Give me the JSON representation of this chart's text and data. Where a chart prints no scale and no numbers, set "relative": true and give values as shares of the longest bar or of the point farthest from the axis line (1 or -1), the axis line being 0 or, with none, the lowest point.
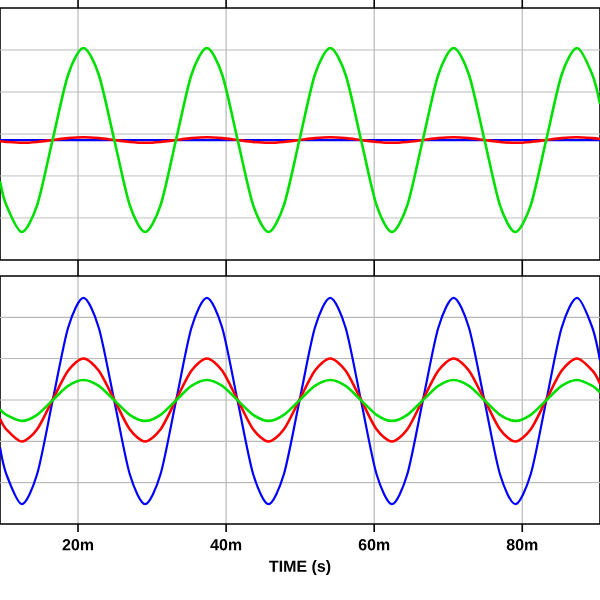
{
  "chart_data": [
    {
      "type": "line",
      "relative": true,
      "grid": true,
      "tick_labels": false,
      "xlim": [
        9.46,
        90.5
      ],
      "xticks": [
        20,
        40,
        60,
        80
      ],
      "x": [
        9.46,
        10.31,
        12.4,
        14.48,
        16.56,
        18.65,
        20.73,
        22.81,
        24.9,
        26.98,
        29.06,
        31.15,
        33.23,
        35.31,
        37.4,
        39.48,
        41.56,
        43.65,
        45.73,
        47.81,
        49.9,
        51.98,
        54.06,
        56.15,
        58.23,
        60.31,
        62.4,
        64.48,
        66.56,
        68.65,
        70.73,
        72.81,
        74.9,
        76.98,
        79.06,
        81.15,
        83.23,
        85.31,
        87.4,
        89.48,
        90.5
      ],
      "series": [
        {
          "color": "#0000ff",
          "values": [
            0.566,
            0.566,
            0.566,
            0.566,
            0.566,
            0.566,
            0.566,
            0.566,
            0.566,
            0.566,
            0.566,
            0.566,
            0.566,
            0.566,
            0.566,
            0.566,
            0.566,
            0.566,
            0.566,
            0.566,
            0.566,
            0.566,
            0.566,
            0.566,
            0.566,
            0.566,
            0.566,
            0.566,
            0.566,
            0.566,
            0.566,
            0.566,
            0.566,
            0.566,
            0.566,
            0.566,
            0.566,
            0.566,
            0.566,
            0.566,
            0.566
          ]
        },
        {
          "color": "#ff0000",
          "values": [
            0.56,
            0.557,
            0.553,
            0.557,
            0.566,
            0.575,
            0.579,
            0.575,
            0.566,
            0.557,
            0.553,
            0.557,
            0.566,
            0.575,
            0.579,
            0.575,
            0.566,
            0.557,
            0.553,
            0.557,
            0.566,
            0.575,
            0.579,
            0.575,
            0.566,
            0.557,
            0.553,
            0.557,
            0.566,
            0.575,
            0.579,
            0.575,
            0.566,
            0.557,
            0.553,
            0.557,
            0.566,
            0.575,
            0.579,
            0.575,
            0.571
          ]
        },
        {
          "color": "#00e000",
          "values": [
            0.372,
            0.259,
            0.132,
            0.259,
            0.566,
            0.873,
            1,
            0.873,
            0.566,
            0.259,
            0.132,
            0.259,
            0.566,
            0.873,
            1,
            0.873,
            0.566,
            0.259,
            0.132,
            0.259,
            0.566,
            0.873,
            1,
            0.873,
            0.566,
            0.259,
            0.132,
            0.259,
            0.566,
            0.873,
            1,
            0.873,
            0.566,
            0.259,
            0.132,
            0.259,
            0.566,
            0.873,
            1,
            0.873,
            0.736
          ]
        }
      ]
    },
    {
      "type": "line",
      "relative": true,
      "grid": true,
      "tick_labels": "x",
      "xlabel": "TIME  (s)",
      "xlim": [
        9.46,
        90.5
      ],
      "xticks": [
        {
          "value": 20,
          "label": "20m"
        },
        {
          "value": 40,
          "label": "40m"
        },
        {
          "value": 60,
          "label": "60m"
        },
        {
          "value": 80,
          "label": "80m"
        }
      ],
      "x": [
        9.46,
        10.31,
        12.4,
        14.48,
        16.56,
        18.65,
        20.73,
        22.81,
        24.9,
        26.98,
        29.06,
        31.15,
        33.23,
        35.31,
        37.4,
        39.48,
        41.56,
        43.65,
        45.73,
        47.81,
        49.9,
        51.98,
        54.06,
        56.15,
        58.23,
        60.31,
        62.4,
        64.48,
        66.56,
        68.65,
        70.73,
        72.81,
        74.9,
        76.98,
        79.06,
        81.15,
        83.23,
        85.31,
        87.4,
        89.48,
        90.5
      ],
      "series": [
        {
          "color": "#0000ff",
          "values": [
            0.34,
            0.221,
            0.088,
            0.221,
            0.544,
            0.867,
            1,
            0.867,
            0.544,
            0.221,
            0.088,
            0.221,
            0.544,
            0.867,
            1,
            0.867,
            0.544,
            0.221,
            0.088,
            0.221,
            0.544,
            0.867,
            1,
            0.867,
            0.544,
            0.221,
            0.088,
            0.221,
            0.544,
            0.867,
            1,
            0.867,
            0.544,
            0.221,
            0.088,
            0.221,
            0.544,
            0.867,
            1,
            0.867,
            0.723
          ]
        },
        {
          "color": "#ff0000",
          "values": [
            0.466,
            0.419,
            0.365,
            0.419,
            0.549,
            0.678,
            0.732,
            0.678,
            0.549,
            0.419,
            0.365,
            0.419,
            0.549,
            0.678,
            0.732,
            0.678,
            0.549,
            0.419,
            0.365,
            0.419,
            0.549,
            0.678,
            0.732,
            0.678,
            0.549,
            0.419,
            0.365,
            0.419,
            0.549,
            0.678,
            0.732,
            0.678,
            0.549,
            0.419,
            0.365,
            0.419,
            0.549,
            0.678,
            0.732,
            0.678,
            0.621
          ]
        },
        {
          "color": "#00e000",
          "values": [
            0.507,
            0.483,
            0.456,
            0.483,
            0.547,
            0.611,
            0.637,
            0.611,
            0.547,
            0.483,
            0.456,
            0.483,
            0.547,
            0.611,
            0.637,
            0.611,
            0.547,
            0.483,
            0.456,
            0.483,
            0.547,
            0.611,
            0.637,
            0.611,
            0.547,
            0.483,
            0.456,
            0.483,
            0.547,
            0.611,
            0.637,
            0.611,
            0.547,
            0.483,
            0.456,
            0.483,
            0.547,
            0.611,
            0.637,
            0.611,
            0.582
          ]
        }
      ]
    }
  ]
}
